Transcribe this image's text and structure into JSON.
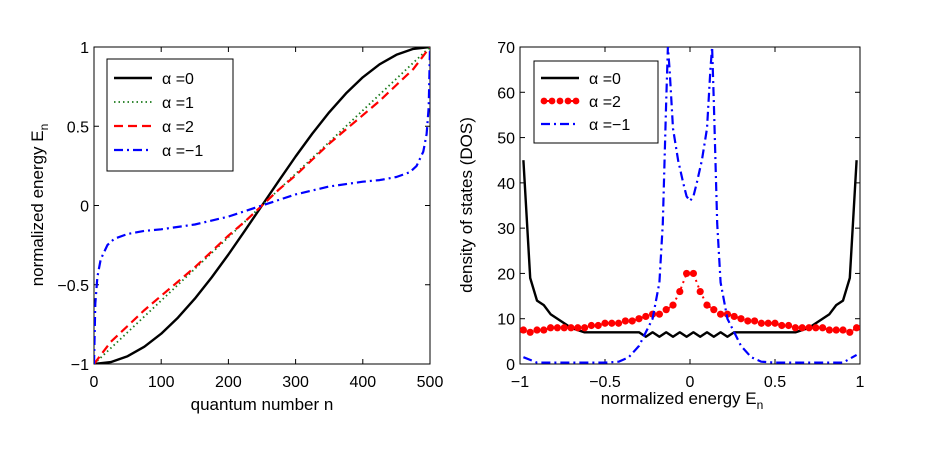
{
  "chart_data": [
    {
      "type": "line",
      "xlabel": "quantum number n",
      "ylabel": "normalized energy E",
      "ylabel_sub": "n",
      "xlim": [
        0,
        500
      ],
      "ylim": [
        -1,
        1
      ],
      "xticks": [
        0,
        100,
        200,
        300,
        400,
        500
      ],
      "xtick_labels": [
        "0",
        "100",
        "200",
        "300",
        "400",
        "500"
      ],
      "yticks": [
        -1,
        -0.5,
        0,
        0.5,
        1
      ],
      "ytick_labels": [
        "−1",
        "−0.5",
        "0",
        "0.5",
        "1"
      ],
      "legend_position": "top-left",
      "series": [
        {
          "name": "α =0",
          "color": "#000000",
          "style": "solid",
          "x": [
            0,
            25,
            50,
            75,
            100,
            125,
            150,
            175,
            200,
            225,
            250,
            275,
            300,
            325,
            350,
            375,
            400,
            425,
            450,
            475,
            500
          ],
          "y": [
            -1,
            -0.988,
            -0.951,
            -0.891,
            -0.809,
            -0.707,
            -0.588,
            -0.454,
            -0.309,
            -0.156,
            0,
            0.156,
            0.309,
            0.454,
            0.588,
            0.707,
            0.809,
            0.891,
            0.951,
            0.988,
            1
          ]
        },
        {
          "name": "α =1",
          "color": "#1a7a1a",
          "style": "dotted",
          "x": [
            0,
            500
          ],
          "y": [
            -1,
            1
          ]
        },
        {
          "name": "α =2",
          "color": "#ff0000",
          "style": "dashed",
          "x": [
            0,
            25,
            50,
            75,
            100,
            125,
            150,
            175,
            200,
            225,
            250,
            275,
            300,
            325,
            350,
            375,
            400,
            425,
            450,
            475,
            500
          ],
          "y": [
            -1,
            -0.86,
            -0.76,
            -0.66,
            -0.57,
            -0.48,
            -0.39,
            -0.29,
            -0.19,
            -0.1,
            0,
            0.1,
            0.19,
            0.29,
            0.39,
            0.48,
            0.57,
            0.66,
            0.76,
            0.86,
            1
          ]
        },
        {
          "name": "α =−1",
          "color": "#0000ff",
          "style": "dashdot",
          "x": [
            0,
            2,
            5,
            10,
            20,
            30,
            50,
            75,
            100,
            150,
            200,
            250,
            300,
            350,
            400,
            425,
            450,
            470,
            480,
            490,
            495,
            498,
            500
          ],
          "y": [
            -1,
            -0.62,
            -0.45,
            -0.34,
            -0.25,
            -0.21,
            -0.18,
            -0.16,
            -0.15,
            -0.12,
            -0.07,
            0,
            0.07,
            0.12,
            0.15,
            0.16,
            0.18,
            0.21,
            0.25,
            0.34,
            0.45,
            0.62,
            1
          ]
        }
      ]
    },
    {
      "type": "line",
      "xlabel": "normalized energy E",
      "xlabel_sub": "n",
      "ylabel": "density of states (DOS)",
      "xlim": [
        -1,
        1
      ],
      "ylim": [
        0,
        70
      ],
      "xticks": [
        -1,
        -0.5,
        0,
        0.5,
        1
      ],
      "xtick_labels": [
        "−1",
        "−0.5",
        "0",
        "0.5",
        "1"
      ],
      "yticks": [
        0,
        10,
        20,
        30,
        40,
        50,
        60,
        70
      ],
      "ytick_labels": [
        "0",
        "10",
        "20",
        "30",
        "40",
        "50",
        "60",
        "70"
      ],
      "legend_position": "top-left",
      "series": [
        {
          "name": "α =0",
          "color": "#000000",
          "style": "solid",
          "x": [
            -0.98,
            -0.94,
            -0.9,
            -0.86,
            -0.82,
            -0.78,
            -0.74,
            -0.7,
            -0.62,
            -0.54,
            -0.46,
            -0.38,
            -0.3,
            -0.26,
            -0.22,
            -0.18,
            -0.14,
            -0.1,
            -0.06,
            -0.02,
            0.02,
            0.06,
            0.1,
            0.14,
            0.18,
            0.22,
            0.26,
            0.3,
            0.38,
            0.46,
            0.54,
            0.62,
            0.7,
            0.74,
            0.78,
            0.82,
            0.86,
            0.9,
            0.94,
            0.98
          ],
          "y": [
            45,
            19,
            14,
            13,
            11,
            10,
            9,
            8,
            7,
            7,
            7,
            7,
            7,
            6,
            7,
            6,
            7,
            6,
            7,
            6,
            7,
            6,
            7,
            6,
            7,
            6,
            7,
            7,
            7,
            7,
            7,
            7,
            8,
            9,
            10,
            11,
            13,
            14,
            19,
            45
          ]
        },
        {
          "name": "α =2",
          "color": "#ff0000",
          "style": "dots",
          "x": [
            -0.98,
            -0.94,
            -0.9,
            -0.86,
            -0.82,
            -0.78,
            -0.74,
            -0.7,
            -0.66,
            -0.62,
            -0.58,
            -0.54,
            -0.5,
            -0.46,
            -0.42,
            -0.38,
            -0.34,
            -0.3,
            -0.26,
            -0.22,
            -0.18,
            -0.14,
            -0.1,
            -0.06,
            -0.02,
            0.02,
            0.06,
            0.1,
            0.14,
            0.18,
            0.22,
            0.26,
            0.3,
            0.34,
            0.38,
            0.42,
            0.46,
            0.5,
            0.54,
            0.58,
            0.62,
            0.66,
            0.7,
            0.74,
            0.78,
            0.82,
            0.86,
            0.9,
            0.94,
            0.98
          ],
          "y": [
            7.5,
            7,
            7.5,
            7.5,
            8,
            8,
            8,
            8,
            8,
            8,
            8.5,
            8.5,
            9,
            9,
            9,
            9.5,
            9.5,
            10,
            10.5,
            11,
            11,
            12,
            13,
            16,
            20,
            20,
            16,
            13,
            12,
            11,
            11,
            10.5,
            10,
            9.5,
            9.5,
            9,
            9,
            9,
            8.5,
            8.5,
            8,
            8,
            8,
            8,
            8,
            7.5,
            7.5,
            7.5,
            7,
            8
          ]
        },
        {
          "name": "α =−1",
          "color": "#0000ff",
          "style": "dashdot",
          "x": [
            -0.98,
            -0.9,
            -0.8,
            -0.7,
            -0.6,
            -0.5,
            -0.42,
            -0.36,
            -0.3,
            -0.26,
            -0.22,
            -0.18,
            -0.16,
            -0.14,
            -0.13,
            -0.12,
            -0.1,
            -0.07,
            -0.04,
            -0.02,
            0,
            0.02,
            0.04,
            0.07,
            0.1,
            0.12,
            0.13,
            0.14,
            0.16,
            0.18,
            0.22,
            0.26,
            0.3,
            0.36,
            0.42,
            0.5,
            0.6,
            0.7,
            0.8,
            0.9,
            0.98
          ],
          "y": [
            1.5,
            0.3,
            0.3,
            0.3,
            0.3,
            0.3,
            0.5,
            1.5,
            4,
            7,
            10,
            18,
            31,
            58,
            70,
            65,
            52,
            45,
            40,
            37,
            36,
            37,
            40,
            45,
            52,
            65,
            70,
            58,
            31,
            18,
            10,
            7,
            4,
            1.5,
            0.5,
            0.3,
            0.3,
            0.3,
            0.3,
            0.3,
            2
          ]
        }
      ]
    }
  ]
}
